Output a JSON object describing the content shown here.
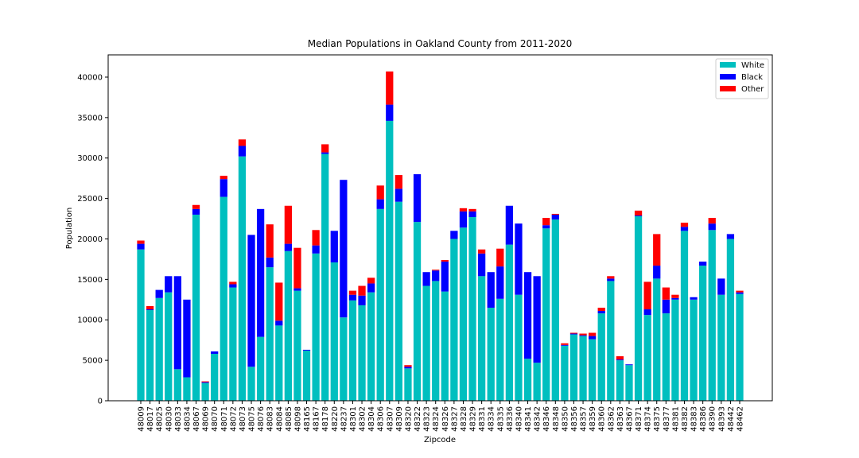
{
  "chart_data": {
    "type": "stacked_bar",
    "title": "Median Populations in Oakland County from 2011-2020",
    "x_label": "Zipcode",
    "y_label": "Population",
    "categories": [
      "48009",
      "48017",
      "48025",
      "48030",
      "48033",
      "48034",
      "48067",
      "48069",
      "48070",
      "48071",
      "48072",
      "48073",
      "48075",
      "48076",
      "48083",
      "48084",
      "48085",
      "48098",
      "48165",
      "48167",
      "48178",
      "48220",
      "48237",
      "48301",
      "48302",
      "48304",
      "48306",
      "48307",
      "48309",
      "48320",
      "48322",
      "48323",
      "48324",
      "48326",
      "48327",
      "48328",
      "48329",
      "48331",
      "48334",
      "48335",
      "48336",
      "48340",
      "48341",
      "48342",
      "48346",
      "48348",
      "48350",
      "48356",
      "48357",
      "48359",
      "48360",
      "48362",
      "48363",
      "48367",
      "48371",
      "48374",
      "48375",
      "48377",
      "48381",
      "48382",
      "48383",
      "48386",
      "48390",
      "48393",
      "48442",
      "48462"
    ],
    "series": [
      {
        "name": "White",
        "color": "#00bfbf",
        "values": [
          18700,
          11200,
          12700,
          13400,
          3900,
          2900,
          23000,
          2200,
          5800,
          25200,
          14000,
          30200,
          4200,
          7900,
          16500,
          9300,
          18500,
          13600,
          6200,
          18200,
          30500,
          17100,
          10300,
          12400,
          11800,
          13400,
          23700,
          34600,
          24600,
          4000,
          22100,
          14200,
          14800,
          13500,
          20000,
          21400,
          22700,
          15400,
          11500,
          12600,
          19300,
          13100,
          5200,
          4700,
          21300,
          22400,
          6800,
          8200,
          8000,
          7600,
          10800,
          14800,
          5000,
          4400,
          22800,
          10600,
          15100,
          10800,
          12500,
          21000,
          12500,
          16700,
          21100,
          13100,
          20000,
          13200
        ]
      },
      {
        "name": "Black",
        "color": "#0000ff",
        "values": [
          700,
          100,
          1000,
          2000,
          11500,
          9600,
          700,
          100,
          300,
          2200,
          400,
          1300,
          16300,
          15800,
          1200,
          600,
          900,
          300,
          100,
          1000,
          200,
          3900,
          17000,
          700,
          1200,
          1100,
          1200,
          2000,
          1600,
          200,
          5900,
          1700,
          1300,
          3700,
          1000,
          2000,
          700,
          2800,
          4400,
          4000,
          4800,
          8800,
          10700,
          10700,
          400,
          600,
          100,
          100,
          100,
          400,
          300,
          300,
          100,
          100,
          100,
          700,
          1600,
          1700,
          200,
          500,
          300,
          500,
          800,
          2000,
          600,
          200
        ]
      },
      {
        "name": "Other",
        "color": "#ff0000",
        "values": [
          400,
          400,
          0,
          0,
          0,
          0,
          500,
          100,
          0,
          400,
          300,
          800,
          0,
          0,
          4100,
          4700,
          4700,
          5000,
          0,
          1900,
          1000,
          0,
          0,
          500,
          1200,
          700,
          1700,
          4100,
          1700,
          200,
          0,
          0,
          100,
          200,
          0,
          400,
          300,
          500,
          0,
          2200,
          0,
          0,
          0,
          0,
          900,
          100,
          200,
          100,
          200,
          400,
          400,
          300,
          400,
          0,
          600,
          3400,
          3900,
          1500,
          400,
          500,
          0,
          0,
          700,
          0,
          0,
          200
        ]
      }
    ],
    "ylim": [
      0,
      42750
    ],
    "yticks": [
      0,
      5000,
      10000,
      15000,
      20000,
      25000,
      30000,
      35000,
      40000
    ],
    "legend": "upper right"
  }
}
